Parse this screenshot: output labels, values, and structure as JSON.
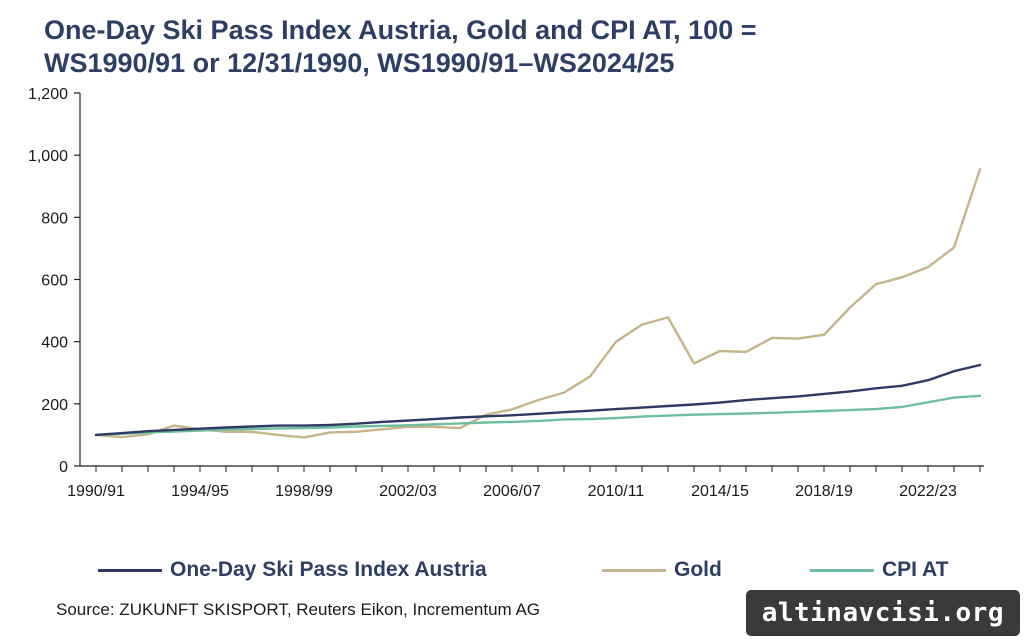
{
  "title_lines": [
    "One-Day Ski Pass Index Austria, Gold and CPI AT, 100 =",
    "WS1990/91 or 12/31/1990, WS1990/91–WS2024/25"
  ],
  "source": "Source: ZUKUNFT SKISPORT, Reuters Eikon, Incrementum AG",
  "watermark": "altinavcisi.org",
  "chart_data": {
    "type": "line",
    "title": "One-Day Ski Pass Index Austria, Gold and CPI AT, 100 = WS1990/91 or 12/31/1990, WS1990/91–WS2024/25",
    "x": [
      "1990/91",
      "1991/92",
      "1992/93",
      "1993/94",
      "1994/95",
      "1995/96",
      "1996/97",
      "1997/98",
      "1998/99",
      "1999/00",
      "2000/01",
      "2001/02",
      "2002/03",
      "2003/04",
      "2004/05",
      "2005/06",
      "2006/07",
      "2007/08",
      "2008/09",
      "2009/10",
      "2010/11",
      "2011/12",
      "2012/13",
      "2013/14",
      "2014/15",
      "2015/16",
      "2016/17",
      "2017/18",
      "2018/19",
      "2019/20",
      "2020/21",
      "2021/22",
      "2022/23",
      "2023/24",
      "2024/25"
    ],
    "x_tick_labels": [
      "1990/91",
      "1994/95",
      "1998/99",
      "2002/03",
      "2006/07",
      "2010/11",
      "2014/15",
      "2018/19",
      "2022/23"
    ],
    "ylim": [
      0,
      1200
    ],
    "y_ticks": [
      0,
      200,
      400,
      600,
      800,
      1000,
      1200
    ],
    "y_tick_labels": [
      "0",
      "200",
      "400",
      "600",
      "800",
      "1,000",
      "1,200"
    ],
    "grid": false,
    "legend_position": "bottom",
    "series": [
      {
        "name": "One-Day Ski Pass Index Austria",
        "color": "#2e3a63",
        "values": [
          100,
          106,
          112,
          116,
          120,
          124,
          127,
          130,
          130,
          132,
          136,
          142,
          146,
          151,
          156,
          160,
          163,
          168,
          173,
          178,
          183,
          188,
          193,
          198,
          204,
          212,
          218,
          224,
          232,
          240,
          250,
          258,
          276,
          305,
          325
        ]
      },
      {
        "name": "Gold",
        "color": "#c6b48a",
        "values": [
          100,
          93,
          102,
          130,
          118,
          110,
          110,
          100,
          92,
          108,
          110,
          118,
          126,
          126,
          122,
          165,
          182,
          212,
          236,
          288,
          400,
          455,
          478,
          330,
          370,
          367,
          412,
          410,
          422,
          510,
          585,
          607,
          640,
          703,
          955
        ]
      },
      {
        "name": "CPI AT",
        "color": "#6dbfa0",
        "values": [
          100,
          104,
          108,
          111,
          114,
          117,
          119,
          121,
          122,
          124,
          127,
          129,
          131,
          134,
          137,
          140,
          142,
          145,
          150,
          151,
          154,
          159,
          162,
          165,
          167,
          169,
          171,
          174,
          177,
          180,
          183,
          190,
          205,
          220,
          226
        ]
      }
    ]
  }
}
